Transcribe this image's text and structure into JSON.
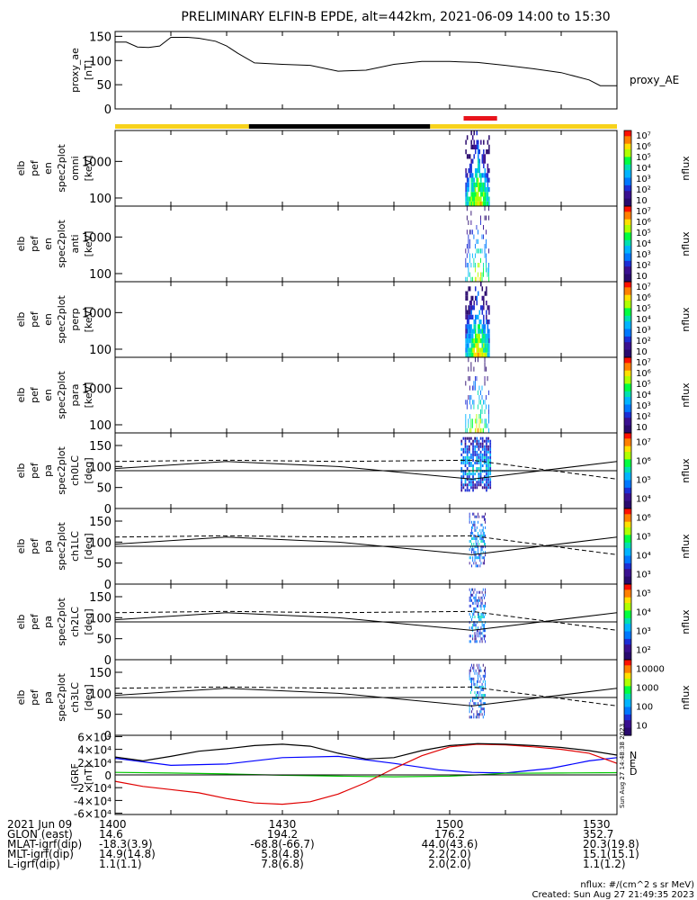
{
  "title": "PRELIMINARY ELFIN-B EPDE, alt=442km, 2021-06-09 14:00 to 15:30",
  "colors": {
    "axis": "#000000",
    "bar_yellow": "#f7d21c",
    "bar_black": "#000000",
    "bar_red": "#e8141c",
    "grf_n": "#0000ff",
    "grf_e": "#00c800",
    "grf_d": "#e00000",
    "grf_total": "#000000"
  },
  "time_axis": {
    "start": "14:00",
    "end": "15:30",
    "tick_labels": [
      "1400",
      "1430",
      "1500",
      "1530"
    ],
    "tick_minutes": [
      0,
      30,
      60,
      90
    ]
  },
  "ephemeris": {
    "rows": [
      {
        "label": "2021 Jun 09",
        "values": [
          "1400",
          "1430",
          "1500",
          "1530"
        ]
      },
      {
        "label": "GLON (east)",
        "values": [
          "14.6",
          "194.2",
          "176.2",
          "352.7"
        ]
      },
      {
        "label": "MLAT-igrf(dip)",
        "values": [
          "-18.3(3.9)",
          "-68.8(-66.7)",
          "44.0(43.6)",
          "20.3(19.8)"
        ]
      },
      {
        "label": "MLT-igrf(dip)",
        "values": [
          "14.9(14.8)",
          "5.8(4.8)",
          "2.2(2.0)",
          "15.1(15.1)"
        ]
      },
      {
        "label": "L-igrf(dip)",
        "values": [
          "1.1(1.1)",
          "7.8(6.8)",
          "2.0(2.0)",
          "1.1(1.2)"
        ]
      }
    ]
  },
  "footer": {
    "units": "nflux: #/(cm^2 s sr MeV)",
    "created": "Created: Sun Aug 27 21:49:35 2023",
    "side_stamp": "Sun Aug 27 14:48:38 2023"
  },
  "chart_data": [
    {
      "type": "line",
      "name": "proxy_ae",
      "ylabel": [
        "proxy_ae",
        "[nT]"
      ],
      "legend": "proxy_AE",
      "ylim": [
        0,
        160
      ],
      "yticks": [
        0,
        50,
        100,
        150
      ],
      "x": [
        0,
        2,
        4,
        6,
        8,
        10,
        13,
        15,
        18,
        20,
        22,
        25,
        30,
        35,
        40,
        45,
        50,
        55,
        60,
        65,
        70,
        75,
        80,
        85,
        87,
        90
      ],
      "y": [
        138,
        138,
        128,
        127,
        130,
        148,
        148,
        146,
        140,
        130,
        115,
        95,
        92,
        90,
        78,
        80,
        92,
        98,
        98,
        96,
        90,
        83,
        75,
        60,
        48,
        48
      ]
    },
    {
      "type": "timeline",
      "name": "orbit-status-bar",
      "segments": [
        {
          "start_min": 0,
          "end_min": 24,
          "color": "yellow"
        },
        {
          "start_min": 24,
          "end_min": 56.5,
          "color": "black"
        },
        {
          "start_min": 56.5,
          "end_min": 90,
          "color": "yellow"
        }
      ],
      "science_zone": {
        "start_min": 62.5,
        "end_min": 68.5
      }
    },
    {
      "type": "heatmap",
      "name": "elb_pef_en_spec2plot_omni",
      "ylabel": [
        "elb",
        "pef",
        "en",
        "spec2plot",
        "omni",
        "[keV]"
      ],
      "ylog": true,
      "ylim": [
        60,
        7000
      ],
      "yticks": [
        100,
        1000
      ],
      "colorbar": {
        "log": true,
        "ticks": [
          "10",
          "10²",
          "10³",
          "10⁴",
          "10⁵",
          "10⁶",
          "10⁷"
        ],
        "label": "nflux"
      }
    },
    {
      "type": "heatmap",
      "name": "elb_pef_en_spec2plot_anti",
      "ylabel": [
        "elb",
        "pef",
        "en",
        "spec2plot",
        "anti",
        "[keV]"
      ],
      "ylog": true,
      "ylim": [
        60,
        7000
      ],
      "yticks": [
        100,
        1000
      ],
      "colorbar": {
        "log": true,
        "ticks": [
          "10",
          "10²",
          "10³",
          "10⁴",
          "10⁵",
          "10⁶",
          "10⁷"
        ],
        "label": "nflux"
      }
    },
    {
      "type": "heatmap",
      "name": "elb_pef_en_spec2plot_perp",
      "ylabel": [
        "elb",
        "pef",
        "en",
        "spec2plot",
        "perp",
        "[keV]"
      ],
      "ylog": true,
      "ylim": [
        60,
        7000
      ],
      "yticks": [
        100,
        1000
      ],
      "colorbar": {
        "log": true,
        "ticks": [
          "10",
          "10²",
          "10³",
          "10⁴",
          "10⁵",
          "10⁶",
          "10⁷"
        ],
        "label": "nflux"
      }
    },
    {
      "type": "heatmap",
      "name": "elb_pef_en_spec2plot_para",
      "ylabel": [
        "elb",
        "pef",
        "en",
        "spec2plot",
        "para",
        "[keV]"
      ],
      "ylog": true,
      "ylim": [
        60,
        7000
      ],
      "yticks": [
        100,
        1000
      ],
      "colorbar": {
        "log": true,
        "ticks": [
          "10",
          "10²",
          "10³",
          "10⁴",
          "10⁵",
          "10⁶",
          "10⁷"
        ],
        "label": "nflux"
      }
    },
    {
      "type": "heatmap",
      "name": "elb_pef_pa_spec2plot_ch0LC",
      "ylabel": [
        "elb",
        "pef",
        "pa",
        "spec2plot",
        "ch0LC",
        "[deg]"
      ],
      "ylim": [
        0,
        180
      ],
      "yticks": [
        0,
        50,
        100,
        150
      ],
      "colorbar": {
        "log": true,
        "ticks": [
          "10⁴",
          "10⁵",
          "10⁶",
          "10⁷"
        ],
        "label": "nflux"
      }
    },
    {
      "type": "heatmap",
      "name": "elb_pef_pa_spec2plot_ch1LC",
      "ylabel": [
        "elb",
        "pef",
        "pa",
        "spec2plot",
        "ch1LC",
        "[deg]"
      ],
      "ylim": [
        0,
        180
      ],
      "yticks": [
        0,
        50,
        100,
        150
      ],
      "colorbar": {
        "log": true,
        "ticks": [
          "10³",
          "10⁴",
          "10⁵",
          "10⁶"
        ],
        "label": "nflux"
      }
    },
    {
      "type": "heatmap",
      "name": "elb_pef_pa_spec2plot_ch2LC",
      "ylabel": [
        "elb",
        "pef",
        "pa",
        "spec2plot",
        "ch2LC",
        "[deg]"
      ],
      "ylim": [
        0,
        180
      ],
      "yticks": [
        0,
        50,
        100,
        150
      ],
      "colorbar": {
        "log": true,
        "ticks": [
          "10²",
          "10³",
          "10⁴",
          "10⁵"
        ],
        "label": "nflux"
      }
    },
    {
      "type": "heatmap",
      "name": "elb_pef_pa_spec2plot_ch3LC",
      "ylabel": [
        "elb",
        "pef",
        "pa",
        "spec2plot",
        "ch3LC",
        "[deg]"
      ],
      "ylim": [
        0,
        180
      ],
      "yticks": [
        0,
        50,
        100,
        150
      ],
      "colorbar": {
        "log": true,
        "ticks": [
          "10",
          "100",
          "1000",
          "10000"
        ],
        "label": "nflux"
      }
    },
    {
      "type": "line",
      "name": "IGRF",
      "ylabel": [
        "IGRF",
        "[nT]"
      ],
      "ylim": [
        -62000,
        62000
      ],
      "yticks": [
        "-6×10⁴",
        "-4×10⁴",
        "-2×10⁴",
        "0",
        "2×10⁴",
        "4×10⁴",
        "6×10⁴"
      ],
      "ytick_values": [
        -60000,
        -40000,
        -20000,
        0,
        20000,
        40000,
        60000
      ],
      "legend": [
        "N",
        "E",
        "D"
      ],
      "series": [
        {
          "name": "N",
          "x": [
            0,
            10,
            20,
            30,
            40,
            50,
            58,
            64,
            70,
            78,
            85,
            90
          ],
          "y": [
            26000,
            15000,
            17000,
            27000,
            29000,
            18000,
            8000,
            4000,
            3000,
            10000,
            22000,
            27000
          ]
        },
        {
          "name": "E",
          "x": [
            0,
            10,
            20,
            30,
            40,
            50,
            60,
            65,
            70,
            80,
            90
          ],
          "y": [
            4000,
            3000,
            1500,
            -500,
            -2000,
            -3000,
            -2000,
            0,
            2500,
            3000,
            3500
          ]
        },
        {
          "name": "D",
          "x": [
            0,
            5,
            10,
            15,
            20,
            25,
            30,
            35,
            40,
            45,
            50,
            55,
            60,
            65,
            70,
            75,
            80,
            85,
            90
          ],
          "y": [
            -10000,
            -18000,
            -23000,
            -28000,
            -37000,
            -44000,
            -46000,
            -42000,
            -30000,
            -12000,
            10000,
            30000,
            44000,
            48000,
            47000,
            44000,
            40000,
            34000,
            18000
          ]
        },
        {
          "name": "total",
          "x": [
            0,
            5,
            10,
            15,
            20,
            25,
            30,
            35,
            40,
            45,
            50,
            55,
            60,
            65,
            70,
            75,
            80,
            85,
            90
          ],
          "y": [
            28000,
            22000,
            29000,
            37000,
            41000,
            46000,
            48000,
            45000,
            34000,
            25000,
            27000,
            38000,
            46000,
            49000,
            48000,
            46000,
            43000,
            38000,
            31000
          ]
        }
      ]
    }
  ]
}
